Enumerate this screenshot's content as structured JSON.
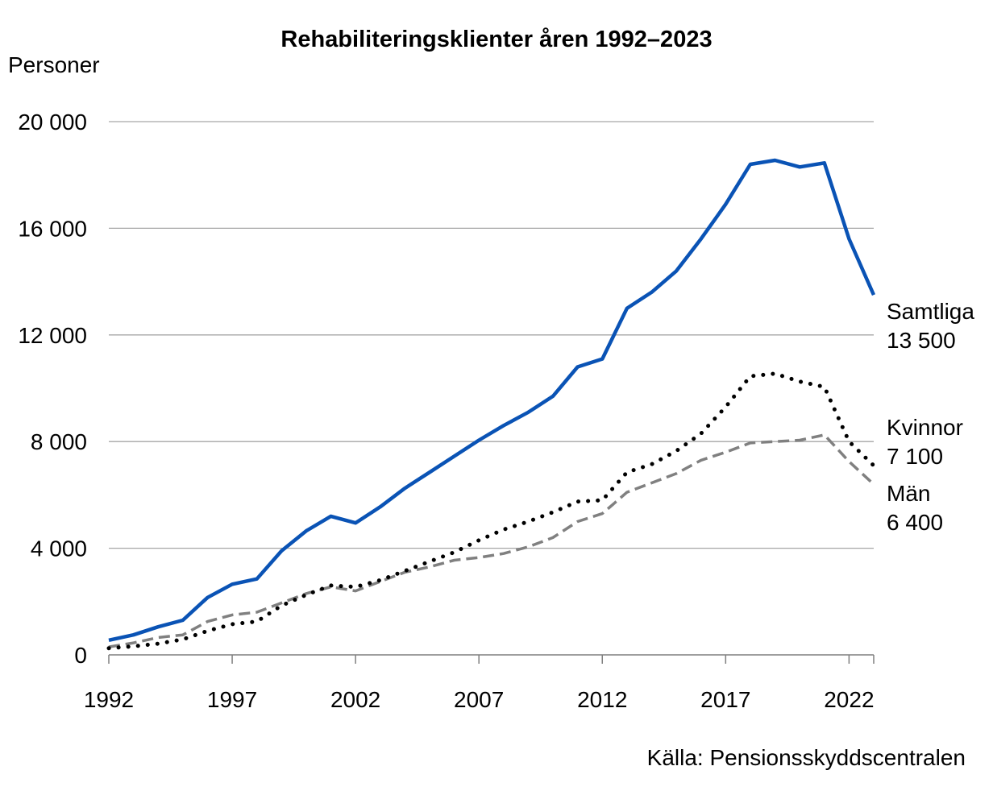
{
  "chart_data": {
    "type": "line",
    "title": "Rehabiliteringsklienter åren 1992–2023",
    "ylabel": "Personer",
    "xlabel": "",
    "source": "Källa: Pensionsskyddscentralen",
    "x": [
      1992,
      1993,
      1994,
      1995,
      1996,
      1997,
      1998,
      1999,
      2000,
      2001,
      2002,
      2003,
      2004,
      2005,
      2006,
      2007,
      2008,
      2009,
      2010,
      2011,
      2012,
      2013,
      2014,
      2015,
      2016,
      2017,
      2018,
      2019,
      2020,
      2021,
      2022,
      2023
    ],
    "xticks": [
      1992,
      1997,
      2002,
      2007,
      2012,
      2017,
      2022
    ],
    "xtick_labels": [
      "1992",
      "1997",
      "2002",
      "2007",
      "2012",
      "2017",
      "2022"
    ],
    "xlim": [
      1992,
      2023
    ],
    "ylim": [
      0,
      20000
    ],
    "yticks": [
      0,
      4000,
      8000,
      12000,
      16000,
      20000
    ],
    "ytick_labels": [
      "0",
      "4 000",
      "8 000",
      "12 000",
      "16 000",
      "20 000"
    ],
    "grid": true,
    "legend": "end-of-line labels",
    "series": [
      {
        "name": "Samtliga",
        "end_label": "13 500",
        "color": "#0a53b5",
        "style": "solid",
        "values": [
          550,
          750,
          1050,
          1300,
          2150,
          2650,
          2850,
          3900,
          4650,
          5200,
          4950,
          5550,
          6250,
          6850,
          7450,
          8050,
          8600,
          9100,
          9700,
          10800,
          11100,
          13000,
          13600,
          14400,
          15600,
          16900,
          18400,
          18550,
          18300,
          18450,
          15600,
          13500
        ]
      },
      {
        "name": "Kvinnor",
        "end_label": "7 100",
        "color": "#000000",
        "style": "dotted",
        "values": [
          250,
          320,
          420,
          580,
          900,
          1150,
          1250,
          1850,
          2250,
          2600,
          2550,
          2800,
          3150,
          3500,
          3850,
          4300,
          4700,
          5000,
          5350,
          5750,
          5800,
          6850,
          7150,
          7650,
          8300,
          9300,
          10450,
          10550,
          10250,
          10050,
          8000,
          7100
        ]
      },
      {
        "name": "Män",
        "end_label": "6 400",
        "color": "#808080",
        "style": "dashed",
        "values": [
          300,
          450,
          650,
          750,
          1250,
          1500,
          1600,
          1950,
          2300,
          2550,
          2400,
          2750,
          3100,
          3300,
          3550,
          3650,
          3800,
          4050,
          4400,
          5000,
          5300,
          6100,
          6450,
          6800,
          7300,
          7600,
          7950,
          8000,
          8050,
          8250,
          7250,
          6400
        ]
      }
    ]
  }
}
